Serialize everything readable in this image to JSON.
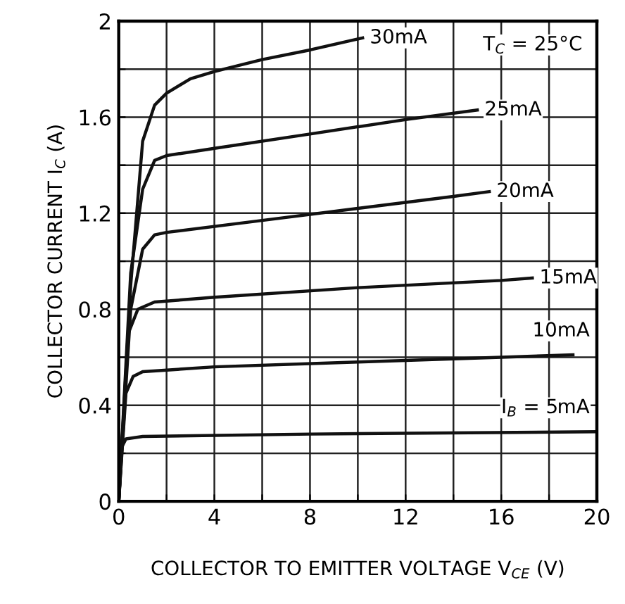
{
  "chart_data": {
    "type": "line",
    "xlabel": "COLLECTOR TO EMITTER VOLTAGE V$_{CE}$ (V)",
    "ylabel": "COLLECTOR CURRENT I$_{C}$ (A)",
    "annotations": [
      "T$_{C}$ = 25°C"
    ],
    "xlim": [
      0,
      20
    ],
    "ylim": [
      0,
      2
    ],
    "xticks": [
      0,
      {
        "value": 2,
        "label": null
      },
      4,
      {
        "value": 6,
        "label": null
      },
      8,
      {
        "value": 10,
        "label": null
      },
      12,
      {
        "value": 14,
        "label": null
      },
      16,
      {
        "value": 18,
        "label": null
      },
      20
    ],
    "yticks": [
      0,
      {
        "value": 0.2,
        "label": null
      },
      0.4,
      {
        "value": 0.6,
        "label": null
      },
      0.8,
      {
        "value": 1.0,
        "label": null
      },
      1.2,
      {
        "value": 1.4,
        "label": null
      },
      1.6,
      {
        "value": 1.8,
        "label": null
      },
      2
    ],
    "grid": true,
    "marker": "none",
    "line_style": "solid",
    "series": [
      {
        "name": "30mA",
        "color": "#111111",
        "x": [
          0,
          0.5,
          1,
          1.5,
          2,
          3,
          4,
          6,
          8,
          10.2
        ],
        "values": [
          0,
          0.9,
          1.5,
          1.65,
          1.7,
          1.76,
          1.79,
          1.84,
          1.88,
          1.93
        ]
      },
      {
        "name": "25mA",
        "color": "#111111",
        "x": [
          0,
          0.5,
          1,
          1.5,
          2,
          4,
          8,
          12,
          15
        ],
        "values": [
          0,
          0.95,
          1.3,
          1.42,
          1.44,
          1.47,
          1.53,
          1.59,
          1.63
        ]
      },
      {
        "name": "20mA",
        "color": "#111111",
        "x": [
          0,
          0.5,
          1,
          1.5,
          2,
          6,
          10,
          14,
          15.5
        ],
        "values": [
          0,
          0.8,
          1.05,
          1.11,
          1.12,
          1.17,
          1.22,
          1.27,
          1.29
        ]
      },
      {
        "name": "15mA",
        "color": "#111111",
        "x": [
          0,
          0.4,
          0.8,
          1.5,
          4,
          10,
          16,
          17.3
        ],
        "values": [
          0,
          0.7,
          0.8,
          0.83,
          0.85,
          0.89,
          0.92,
          0.93
        ]
      },
      {
        "name": "10mA",
        "color": "#111111",
        "x": [
          0,
          0.3,
          0.6,
          1,
          4,
          10,
          16,
          19
        ],
        "values": [
          0,
          0.45,
          0.52,
          0.54,
          0.56,
          0.58,
          0.6,
          0.61
        ]
      },
      {
        "name": "I$_{B}$ = 5mA",
        "color": "#111111",
        "x": [
          0,
          0.1,
          0.3,
          1,
          8,
          20
        ],
        "values": [
          0,
          0.22,
          0.26,
          0.27,
          0.28,
          0.29
        ]
      }
    ]
  }
}
